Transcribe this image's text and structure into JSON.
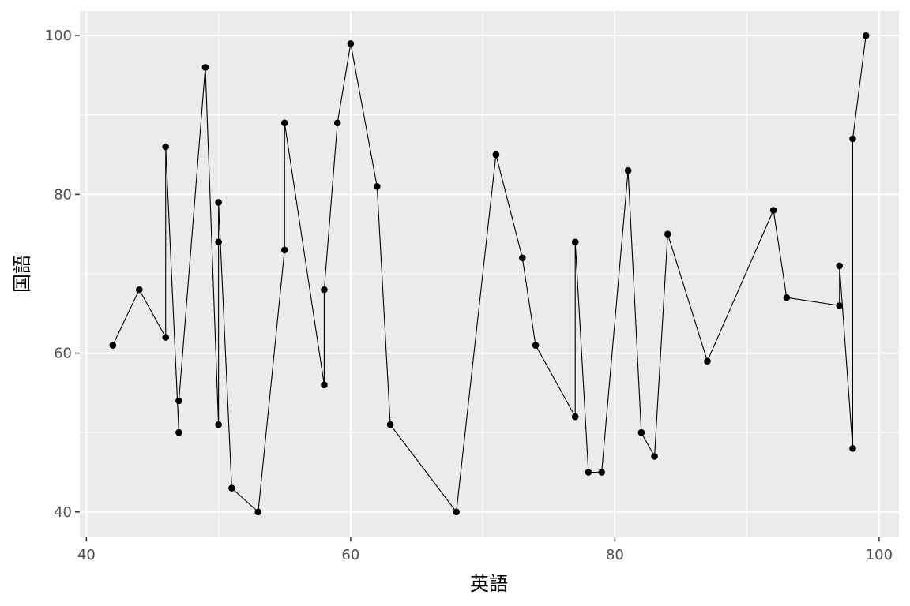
{
  "chart_data": {
    "type": "line",
    "title": "",
    "xlabel": "英語",
    "ylabel": "国語",
    "xlim": [
      39.5,
      101.5
    ],
    "ylim": [
      36.9,
      103.1
    ],
    "x_ticks": [
      40,
      60,
      80,
      100
    ],
    "y_ticks": [
      40,
      60,
      80,
      100
    ],
    "x_tick_labels": [
      "40",
      "60",
      "80",
      "100"
    ],
    "y_tick_labels": [
      "40",
      "60",
      "80",
      "100"
    ],
    "grid": true,
    "legend": "none",
    "colors": {
      "panel": "#EBEBEB",
      "grid": "#FFFFFF",
      "line": "#000000",
      "point": "#000000"
    },
    "series": [
      {
        "x": [
          42,
          44,
          46,
          46,
          47,
          47,
          49,
          50,
          50,
          50,
          51,
          53,
          55,
          55,
          58,
          58,
          59,
          60,
          62,
          63,
          68,
          71,
          73,
          74,
          77,
          77,
          78,
          79,
          81,
          82,
          83,
          84,
          87,
          92,
          93,
          97,
          97,
          98,
          98,
          99
        ],
        "y": [
          61,
          68,
          62,
          86,
          50,
          54,
          96,
          51,
          74,
          79,
          43,
          40,
          73,
          89,
          56,
          68,
          89,
          99,
          81,
          51,
          40,
          85,
          72,
          61,
          52,
          74,
          45,
          45,
          83,
          50,
          47,
          75,
          59,
          78,
          67,
          66,
          71,
          48,
          87,
          100
        ]
      }
    ]
  }
}
